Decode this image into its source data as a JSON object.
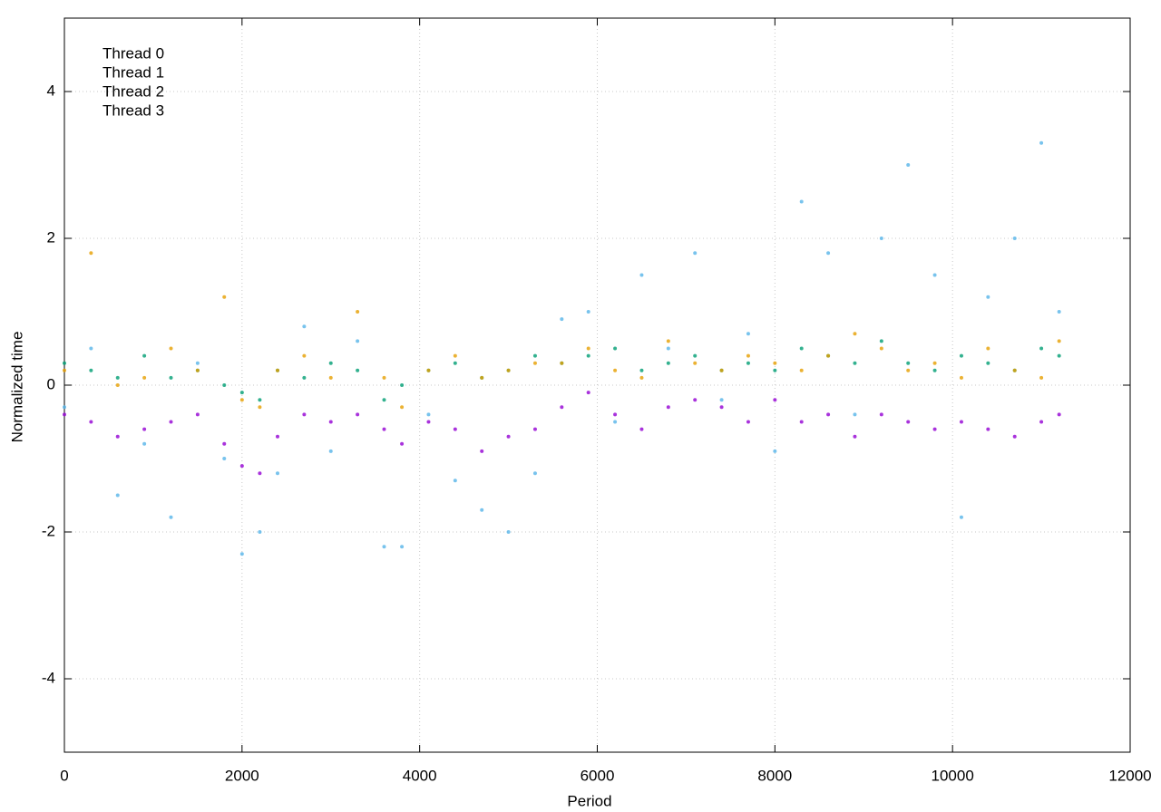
{
  "chart_data": {
    "type": "scatter",
    "xlabel": "Period",
    "ylabel": "Normalized time",
    "xlim": [
      0,
      12000
    ],
    "ylim": [
      -5,
      5
    ],
    "xticks": [
      0,
      2000,
      4000,
      6000,
      8000,
      10000,
      12000
    ],
    "yticks": [
      -4,
      -2,
      0,
      2,
      4
    ],
    "grid": true,
    "legend": "upper left",
    "x": [
      0,
      300,
      600,
      900,
      1200,
      1500,
      1800,
      2000,
      2200,
      2400,
      2700,
      3000,
      3300,
      3600,
      3800,
      4100,
      4400,
      4700,
      5000,
      5300,
      5600,
      5900,
      6200,
      6500,
      6800,
      7100,
      7400,
      7700,
      8000,
      8300,
      8600,
      8900,
      9200,
      9500,
      9800,
      10100,
      10400,
      10700,
      11000,
      11200
    ],
    "series": [
      {
        "name": "Thread 0",
        "color": "#9400d3",
        "values": [
          -0.4,
          -0.5,
          -0.7,
          -0.6,
          -0.5,
          -0.4,
          -0.8,
          -1.1,
          -1.2,
          -0.7,
          -0.4,
          -0.5,
          -0.4,
          -0.6,
          -0.8,
          -0.5,
          -0.6,
          -0.9,
          -0.7,
          -0.6,
          -0.3,
          -0.1,
          -0.4,
          -0.6,
          -0.3,
          -0.2,
          -0.3,
          -0.5,
          -0.2,
          -0.5,
          -0.4,
          -0.7,
          -0.4,
          -0.5,
          -0.6,
          -0.5,
          -0.6,
          -0.7,
          -0.5,
          -0.4
        ]
      },
      {
        "name": "Thread 1",
        "color": "#009e73",
        "values": [
          0.3,
          0.2,
          0.1,
          0.4,
          0.1,
          0.2,
          0.0,
          -0.1,
          -0.2,
          0.2,
          0.1,
          0.3,
          0.2,
          -0.2,
          0.0,
          0.2,
          0.3,
          0.1,
          0.2,
          0.4,
          0.3,
          0.4,
          0.5,
          0.2,
          0.3,
          0.4,
          0.2,
          0.3,
          0.2,
          0.5,
          0.4,
          0.3,
          0.6,
          0.3,
          0.2,
          0.4,
          0.3,
          0.2,
          0.5,
          0.4
        ]
      },
      {
        "name": "Thread 2",
        "color": "#56b4e9",
        "values": [
          -0.3,
          0.5,
          -1.5,
          -0.8,
          -1.8,
          0.3,
          -1.0,
          -2.3,
          -2.0,
          -1.2,
          0.8,
          -0.9,
          0.6,
          -2.2,
          -2.2,
          -0.4,
          -1.3,
          -1.7,
          -2.0,
          -1.2,
          0.9,
          1.0,
          -0.5,
          1.5,
          0.5,
          1.8,
          -0.2,
          0.7,
          -0.9,
          2.5,
          1.8,
          -0.4,
          2.0,
          3.0,
          1.5,
          -1.8,
          1.2,
          2.0,
          3.3,
          1.0
        ]
      },
      {
        "name": "Thread 3",
        "color": "#e69f00",
        "values": [
          0.2,
          1.8,
          0.0,
          0.1,
          0.5,
          0.2,
          1.2,
          -0.2,
          -0.3,
          0.2,
          0.4,
          0.1,
          1.0,
          0.1,
          -0.3,
          0.2,
          0.4,
          0.1,
          0.2,
          0.3,
          0.3,
          0.5,
          0.2,
          0.1,
          0.6,
          0.3,
          0.2,
          0.4,
          0.3,
          0.2,
          0.4,
          0.7,
          0.5,
          0.2,
          0.3,
          0.1,
          0.5,
          0.2,
          0.1,
          0.6
        ]
      }
    ]
  }
}
